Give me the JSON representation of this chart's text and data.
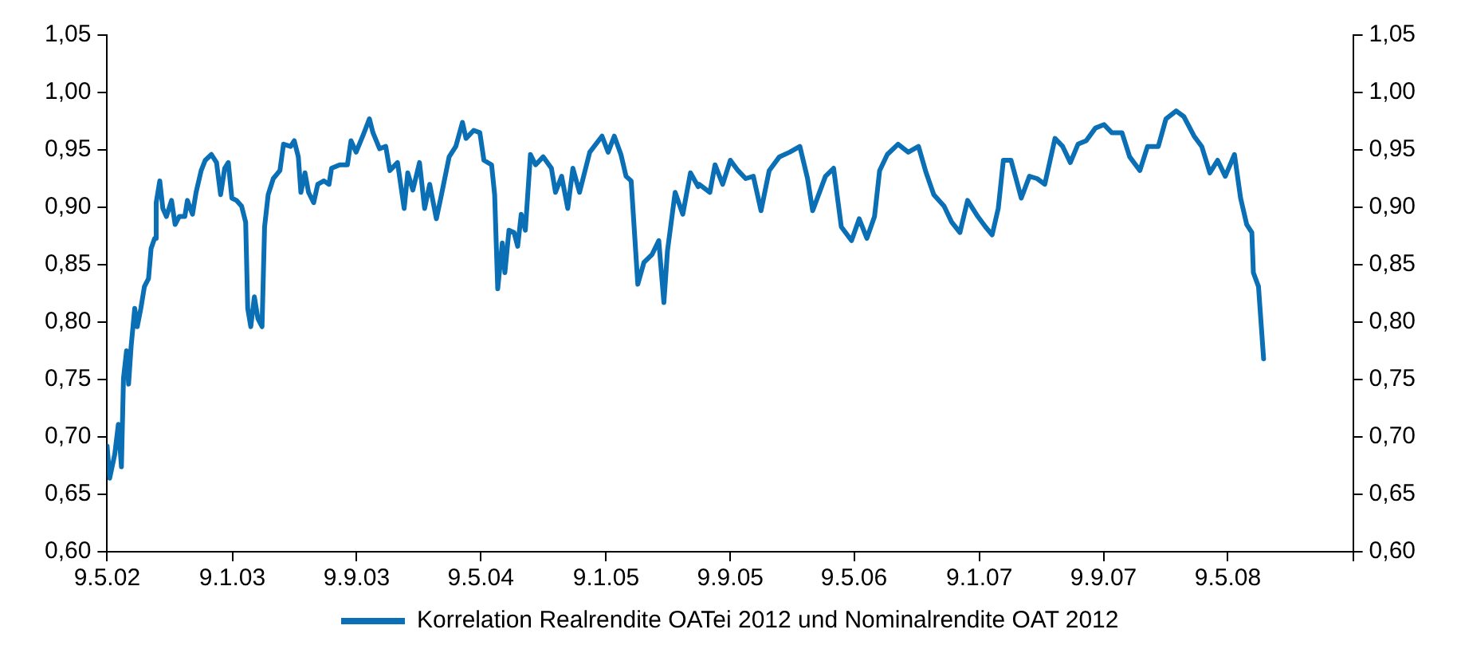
{
  "chart_data": {
    "type": "line",
    "legend": "bottom",
    "grid": false,
    "marker": "none",
    "line_style": "solid",
    "xlim": [
      "2002-05-09",
      "2009-01-09"
    ],
    "xticks": [
      {
        "value": "2002-05-09",
        "label": "9.5.02"
      },
      {
        "value": "2003-01-09",
        "label": "9.1.03"
      },
      {
        "value": "2003-09-09",
        "label": "9.9.03"
      },
      {
        "value": "2004-05-09",
        "label": "9.5.04"
      },
      {
        "value": "2005-01-09",
        "label": "9.1.05"
      },
      {
        "value": "2005-09-09",
        "label": "9.9.05"
      },
      {
        "value": "2006-05-09",
        "label": "9.5.06"
      },
      {
        "value": "2007-01-09",
        "label": "9.1.07"
      },
      {
        "value": "2007-09-09",
        "label": "9.9.07"
      },
      {
        "value": "2008-05-09",
        "label": "9.5.08"
      },
      {
        "value": "2009-01-09",
        "label": null
      }
    ],
    "ylim": [
      0.6,
      1.05
    ],
    "yticks": [
      {
        "value": 0.6,
        "label": "0,60"
      },
      {
        "value": 0.65,
        "label": "0,65"
      },
      {
        "value": 0.7,
        "label": "0,70"
      },
      {
        "value": 0.75,
        "label": "0,75"
      },
      {
        "value": 0.8,
        "label": "0,80"
      },
      {
        "value": 0.85,
        "label": "0,85"
      },
      {
        "value": 0.9,
        "label": "0,90"
      },
      {
        "value": 0.95,
        "label": "0,95"
      },
      {
        "value": 1.0,
        "label": "1,00"
      },
      {
        "value": 1.05,
        "label": "1,05"
      }
    ],
    "y2lim": [
      0.6,
      1.05
    ],
    "y2ticks": [
      {
        "value": 0.6,
        "label": "0,60"
      },
      {
        "value": 0.65,
        "label": "0,65"
      },
      {
        "value": 0.7,
        "label": "0,70"
      },
      {
        "value": 0.75,
        "label": "0,75"
      },
      {
        "value": 0.8,
        "label": "0,80"
      },
      {
        "value": 0.85,
        "label": "0,85"
      },
      {
        "value": 0.9,
        "label": "0,90"
      },
      {
        "value": 0.95,
        "label": "0,95"
      },
      {
        "value": 1.0,
        "label": "1,00"
      },
      {
        "value": 1.05,
        "label": "1,05"
      }
    ],
    "series": [
      {
        "name": "Korrelation Realrendite OATei 2012 und Nominalrendite OAT 2012",
        "color": "#0a6fb4",
        "x": [
          "2002-05-09",
          "2002-05-14",
          "2002-05-24",
          "2002-05-31",
          "2002-06-06",
          "2002-06-10",
          "2002-06-16",
          "2002-06-20",
          "2002-06-25",
          "2002-07-02",
          "2002-07-07",
          "2002-07-14",
          "2002-07-21",
          "2002-07-29",
          "2002-08-03",
          "2002-08-10",
          "2002-08-13",
          "2002-08-20",
          "2002-08-26",
          "2002-09-02",
          "2002-09-12",
          "2002-09-19",
          "2002-09-27",
          "2002-10-08",
          "2002-10-13",
          "2002-10-23",
          "2002-10-30",
          "2002-11-09",
          "2002-11-17",
          "2002-11-29",
          "2002-12-09",
          "2002-12-17",
          "2002-12-25",
          "2003-01-01",
          "2003-01-08",
          "2003-01-17",
          "2003-01-27",
          "2003-02-04",
          "2003-02-08",
          "2003-02-14",
          "2003-02-21",
          "2003-02-28",
          "2003-03-08",
          "2003-03-13",
          "2003-03-20",
          "2003-03-30",
          "2003-04-12",
          "2003-04-19",
          "2003-05-03",
          "2003-05-10",
          "2003-05-18",
          "2003-05-23",
          "2003-05-31",
          "2003-06-07",
          "2003-06-17",
          "2003-06-25",
          "2003-07-07",
          "2003-07-17",
          "2003-07-22",
          "2003-08-07",
          "2003-08-22",
          "2003-08-29",
          "2003-09-08",
          "2003-09-21",
          "2003-10-04",
          "2003-10-11",
          "2003-10-24",
          "2003-11-05",
          "2003-11-13",
          "2003-11-28",
          "2003-12-11",
          "2003-12-18",
          "2003-12-28",
          "2004-01-10",
          "2004-01-20",
          "2004-01-30",
          "2004-02-12",
          "2004-02-22",
          "2004-03-08",
          "2004-03-21",
          "2004-04-03",
          "2004-04-10",
          "2004-04-25",
          "2004-05-07",
          "2004-05-15",
          "2004-05-30",
          "2004-06-05",
          "2004-06-11",
          "2004-06-20",
          "2004-06-25",
          "2004-07-03",
          "2004-07-13",
          "2004-07-20",
          "2004-07-27",
          "2004-08-04",
          "2004-08-14",
          "2004-08-24",
          "2004-09-08",
          "2004-09-24",
          "2004-10-02",
          "2004-10-14",
          "2004-10-26",
          "2004-11-05",
          "2004-11-18",
          "2004-12-08",
          "2005-01-01",
          "2005-01-13",
          "2005-01-25",
          "2005-02-07",
          "2005-02-17",
          "2005-02-27",
          "2005-03-12",
          "2005-03-24",
          "2005-04-09",
          "2005-04-22",
          "2005-05-02",
          "2005-05-09",
          "2005-05-24",
          "2005-06-08",
          "2005-06-23",
          "2005-07-08",
          "2005-07-10",
          "2005-07-31",
          "2005-08-10",
          "2005-08-25",
          "2005-09-09",
          "2005-09-24",
          "2005-10-09",
          "2005-10-24",
          "2005-11-08",
          "2005-11-24",
          "2005-12-14",
          "2006-01-03",
          "2006-01-23",
          "2006-02-07",
          "2006-02-17",
          "2006-03-04",
          "2006-03-14",
          "2006-03-30",
          "2006-04-14",
          "2006-05-04",
          "2006-05-19",
          "2006-06-03",
          "2006-06-18",
          "2006-06-28",
          "2006-07-13",
          "2006-08-03",
          "2006-08-23",
          "2006-09-12",
          "2006-09-27",
          "2006-10-12",
          "2006-11-01",
          "2006-11-16",
          "2006-12-02",
          "2006-12-17",
          "2007-01-06",
          "2007-01-21",
          "2007-02-03",
          "2007-02-15",
          "2007-02-25",
          "2007-03-12",
          "2007-04-01",
          "2007-04-17",
          "2007-05-02",
          "2007-05-17",
          "2007-06-06",
          "2007-06-21",
          "2007-07-06",
          "2007-07-21",
          "2007-08-06",
          "2007-08-24",
          "2007-09-10",
          "2007-09-25",
          "2007-10-15",
          "2007-10-30",
          "2007-11-19",
          "2007-12-04",
          "2007-12-25",
          "2008-01-09",
          "2008-01-29",
          "2008-02-13",
          "2008-03-04",
          "2008-03-19",
          "2008-04-04",
          "2008-04-19",
          "2008-05-04",
          "2008-05-22",
          "2008-06-03",
          "2008-06-15",
          "2008-06-25",
          "2008-06-28",
          "2008-07-08",
          "2008-07-18"
        ],
        "values": [
          0.692,
          0.664,
          0.685,
          0.711,
          0.674,
          0.751,
          0.775,
          0.746,
          0.779,
          0.812,
          0.796,
          0.812,
          0.831,
          0.838,
          0.864,
          0.873,
          0.904,
          0.923,
          0.899,
          0.892,
          0.906,
          0.885,
          0.892,
          0.892,
          0.906,
          0.894,
          0.913,
          0.932,
          0.941,
          0.946,
          0.939,
          0.911,
          0.934,
          0.939,
          0.908,
          0.906,
          0.901,
          0.887,
          0.812,
          0.796,
          0.822,
          0.803,
          0.796,
          0.883,
          0.911,
          0.925,
          0.932,
          0.955,
          0.953,
          0.958,
          0.944,
          0.913,
          0.93,
          0.913,
          0.904,
          0.92,
          0.923,
          0.92,
          0.934,
          0.937,
          0.937,
          0.958,
          0.948,
          0.962,
          0.977,
          0.965,
          0.951,
          0.953,
          0.932,
          0.939,
          0.899,
          0.93,
          0.915,
          0.939,
          0.899,
          0.92,
          0.89,
          0.911,
          0.944,
          0.953,
          0.974,
          0.96,
          0.967,
          0.965,
          0.941,
          0.937,
          0.911,
          0.829,
          0.869,
          0.843,
          0.88,
          0.878,
          0.866,
          0.894,
          0.88,
          0.946,
          0.937,
          0.944,
          0.934,
          0.913,
          0.927,
          0.899,
          0.934,
          0.913,
          0.948,
          0.962,
          0.948,
          0.962,
          0.946,
          0.927,
          0.923,
          0.833,
          0.852,
          0.859,
          0.871,
          0.817,
          0.862,
          0.913,
          0.894,
          0.93,
          0.918,
          0.92,
          0.913,
          0.937,
          0.92,
          0.941,
          0.932,
          0.925,
          0.927,
          0.897,
          0.932,
          0.944,
          0.948,
          0.953,
          0.925,
          0.897,
          0.915,
          0.927,
          0.934,
          0.883,
          0.871,
          0.89,
          0.873,
          0.892,
          0.932,
          0.946,
          0.955,
          0.948,
          0.953,
          0.93,
          0.911,
          0.901,
          0.887,
          0.878,
          0.906,
          0.892,
          0.883,
          0.876,
          0.899,
          0.941,
          0.941,
          0.908,
          0.927,
          0.925,
          0.92,
          0.96,
          0.953,
          0.939,
          0.955,
          0.958,
          0.969,
          0.972,
          0.965,
          0.965,
          0.944,
          0.932,
          0.953,
          0.953,
          0.977,
          0.984,
          0.979,
          0.962,
          0.953,
          0.93,
          0.941,
          0.927,
          0.946,
          0.908,
          0.885,
          0.878,
          0.843,
          0.831,
          0.768
        ]
      }
    ]
  }
}
